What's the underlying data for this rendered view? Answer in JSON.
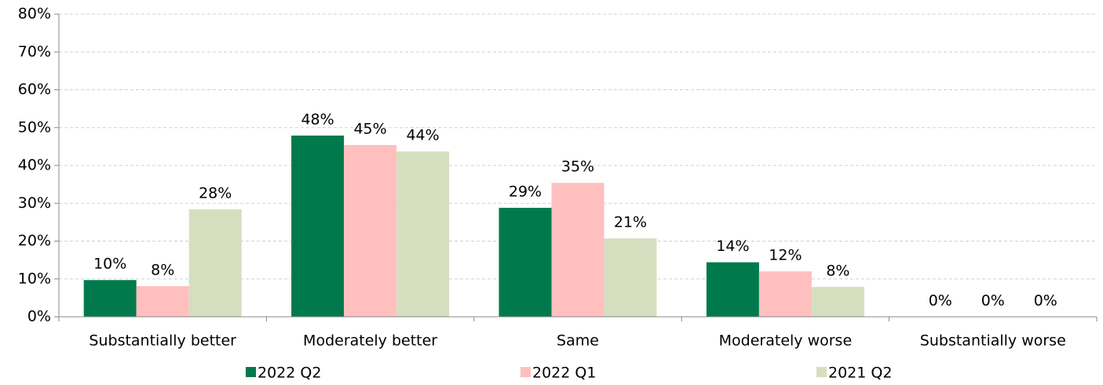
{
  "chart_data": {
    "type": "bar",
    "categories": [
      "Substantially better",
      "Moderately better",
      "Same",
      "Moderately worse",
      "Substantially worse"
    ],
    "series": [
      {
        "name": "2022 Q2",
        "color": "#007a4d",
        "values": [
          9.7,
          47.9,
          28.8,
          14.4,
          0
        ],
        "value_labels": [
          "10%",
          "48%",
          "29%",
          "14%",
          "0%"
        ]
      },
      {
        "name": "2022 Q1",
        "color": "#ffbfbf",
        "values": [
          8.1,
          45.4,
          35.4,
          12.0,
          0
        ],
        "value_labels": [
          "8%",
          "45%",
          "35%",
          "12%",
          "0%"
        ]
      },
      {
        "name": "2021 Q2",
        "color": "#d5dfc0",
        "values": [
          28.4,
          43.7,
          20.7,
          7.9,
          0
        ],
        "value_labels": [
          "28%",
          "44%",
          "21%",
          "8%",
          "0%"
        ]
      }
    ],
    "ylim": [
      0,
      80
    ],
    "yticks": [
      {
        "value": 0,
        "label": "0%"
      },
      {
        "value": 10,
        "label": "10%"
      },
      {
        "value": 20,
        "label": "20%"
      },
      {
        "value": 30,
        "label": "30%"
      },
      {
        "value": 40,
        "label": "40%"
      },
      {
        "value": 50,
        "label": "50%"
      },
      {
        "value": 60,
        "label": "60%"
      },
      {
        "value": 70,
        "label": "70%"
      },
      {
        "value": 80,
        "label": "80%"
      }
    ],
    "grid": true,
    "legend": "bottom"
  }
}
